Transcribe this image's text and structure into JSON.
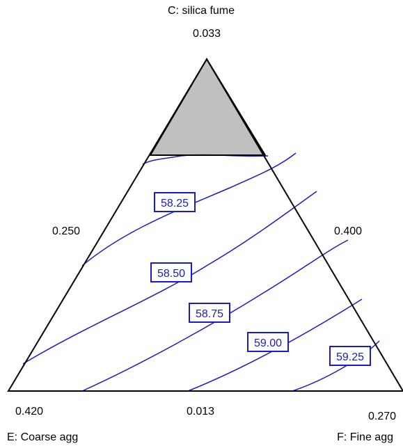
{
  "chart_data": {
    "type": "ternary-contour",
    "components": {
      "top": {
        "label": "C: silica fume",
        "max": "0.033",
        "min": "0.013"
      },
      "left": {
        "label": "E: Coarse agg",
        "max": "0.420",
        "min": "0.250"
      },
      "right": {
        "label": "F: Fine agg",
        "max": "0.400",
        "min": "0.270"
      }
    },
    "contour_labels": [
      "58.25",
      "58.50",
      "58.75",
      "59.00",
      "59.25"
    ],
    "contour_levels": [
      58.25,
      58.5,
      58.75,
      59.0,
      59.25
    ],
    "infeasible_region": "top",
    "colors": {
      "contour": "#1a1acc",
      "infeasible": "#c0c0c0",
      "frame": "#000000"
    }
  }
}
